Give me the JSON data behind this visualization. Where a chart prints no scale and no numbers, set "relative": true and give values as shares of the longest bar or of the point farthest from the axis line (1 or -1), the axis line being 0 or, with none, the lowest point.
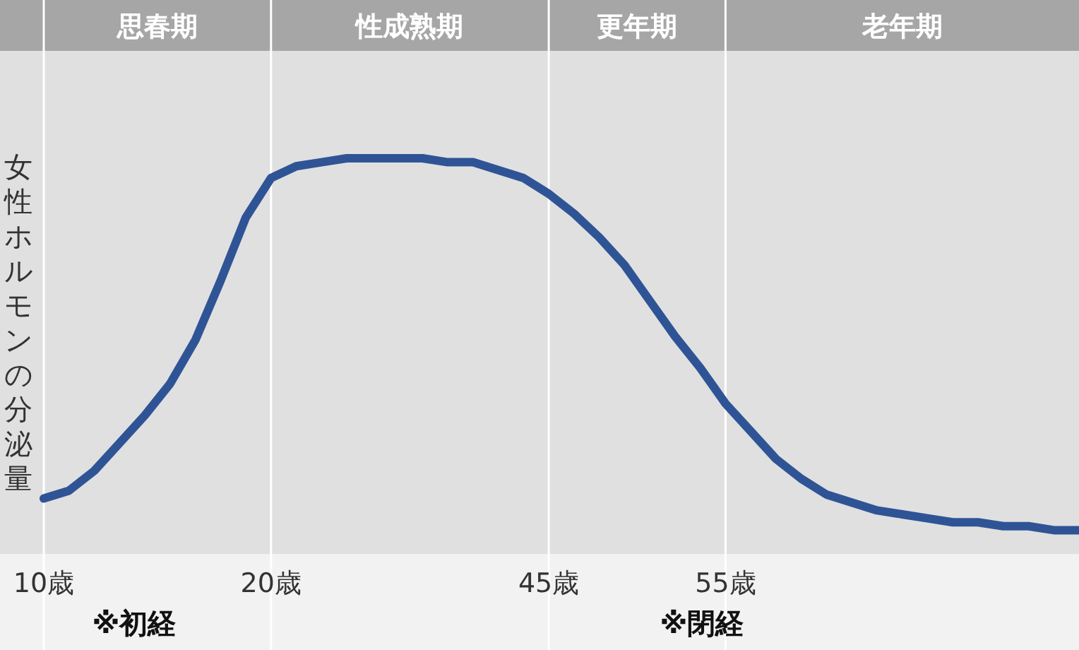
{
  "chart_data": {
    "type": "line",
    "relative": true,
    "ylabel": "女性ホルモンの分泌量",
    "categories": [
      "10歳",
      null,
      null,
      null,
      null,
      null,
      null,
      null,
      null,
      "20歳",
      null,
      null,
      null,
      null,
      null,
      null,
      null,
      null,
      null,
      null,
      "45歳",
      null,
      null,
      null,
      null,
      null,
      null,
      "55歳",
      null,
      null,
      null,
      null,
      null,
      null,
      null,
      null,
      null,
      null,
      null,
      null,
      null,
      null
    ],
    "series": [
      {
        "color": "#2f5496",
        "values": [
          0.14,
          0.16,
          0.21,
          0.28,
          0.35,
          0.43,
          0.54,
          0.69,
          0.85,
          0.95,
          0.98,
          0.99,
          1,
          1,
          1,
          1,
          0.99,
          0.99,
          0.97,
          0.95,
          0.91,
          0.86,
          0.8,
          0.73,
          0.64,
          0.55,
          0.47,
          0.38,
          0.31,
          0.24,
          0.19,
          0.15,
          0.13,
          0.11,
          0.1,
          0.09,
          0.08,
          0.08,
          0.07,
          0.07,
          0.06,
          0.06
        ]
      }
    ],
    "annotations": [
      "思春期",
      "性成熟期",
      "更年期",
      "老年期",
      "※初経",
      "※閉経"
    ],
    "grid": "x"
  }
}
